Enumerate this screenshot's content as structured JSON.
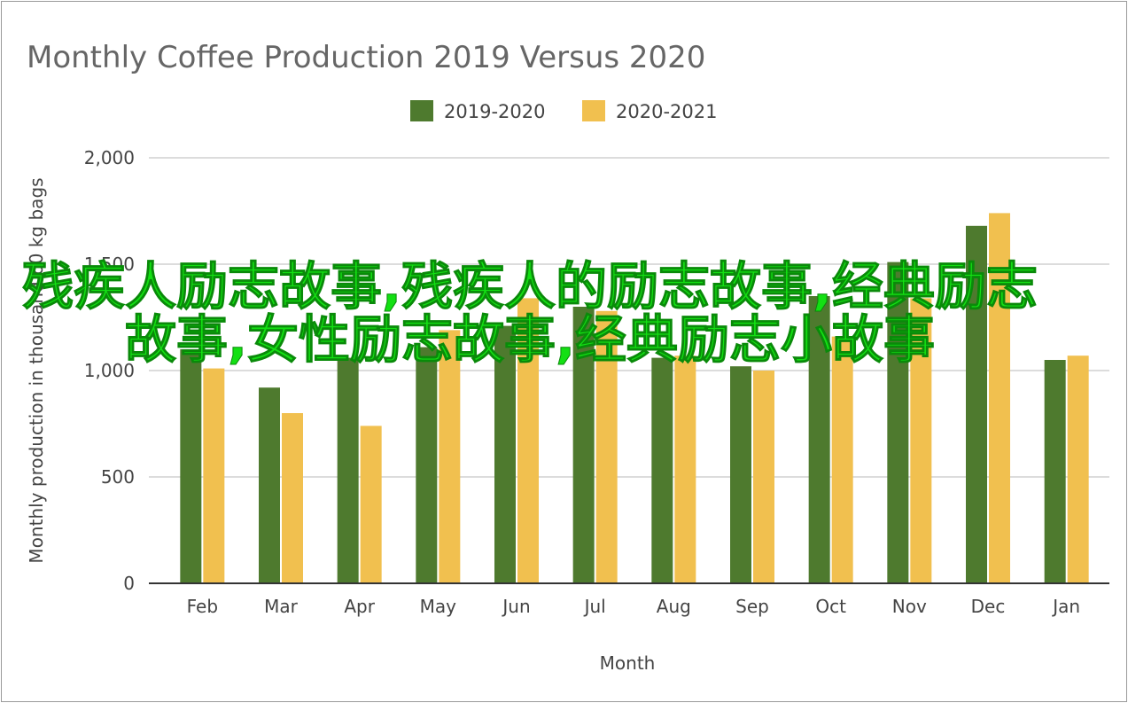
{
  "chart_data": {
    "type": "bar",
    "title": "Monthly Coffee Production 2019 Versus 2020",
    "xlabel": "Month",
    "ylabel": "Monthly production in thousand 60 kg bags",
    "categories": [
      "Feb",
      "Mar",
      "Apr",
      "May",
      "Jun",
      "Jul",
      "Aug",
      "Sep",
      "Oct",
      "Nov",
      "Dec",
      "Jan"
    ],
    "series": [
      {
        "name": "2019-2020",
        "color": "#4e7a2e",
        "values": [
          1100,
          920,
          1060,
          1110,
          1210,
          1300,
          1060,
          1020,
          1350,
          1510,
          1680,
          1050
        ]
      },
      {
        "name": "2020-2021",
        "color": "#f1c04f",
        "values": [
          1010,
          800,
          740,
          1190,
          1340,
          1280,
          1070,
          1000,
          1160,
          1340,
          1740,
          1070
        ]
      }
    ],
    "yticks": [
      0,
      500,
      1000,
      1500,
      2000
    ],
    "ytick_labels": [
      "0",
      "500",
      "1,000",
      "1,500",
      "2,000"
    ],
    "ylim": [
      0,
      2000
    ],
    "grid": true,
    "legend_position": "top"
  },
  "overlay": {
    "text": "残疾人励志故事,残疾人的励志故事,经典励志故事,女性励志故事,经典励志小故事"
  }
}
